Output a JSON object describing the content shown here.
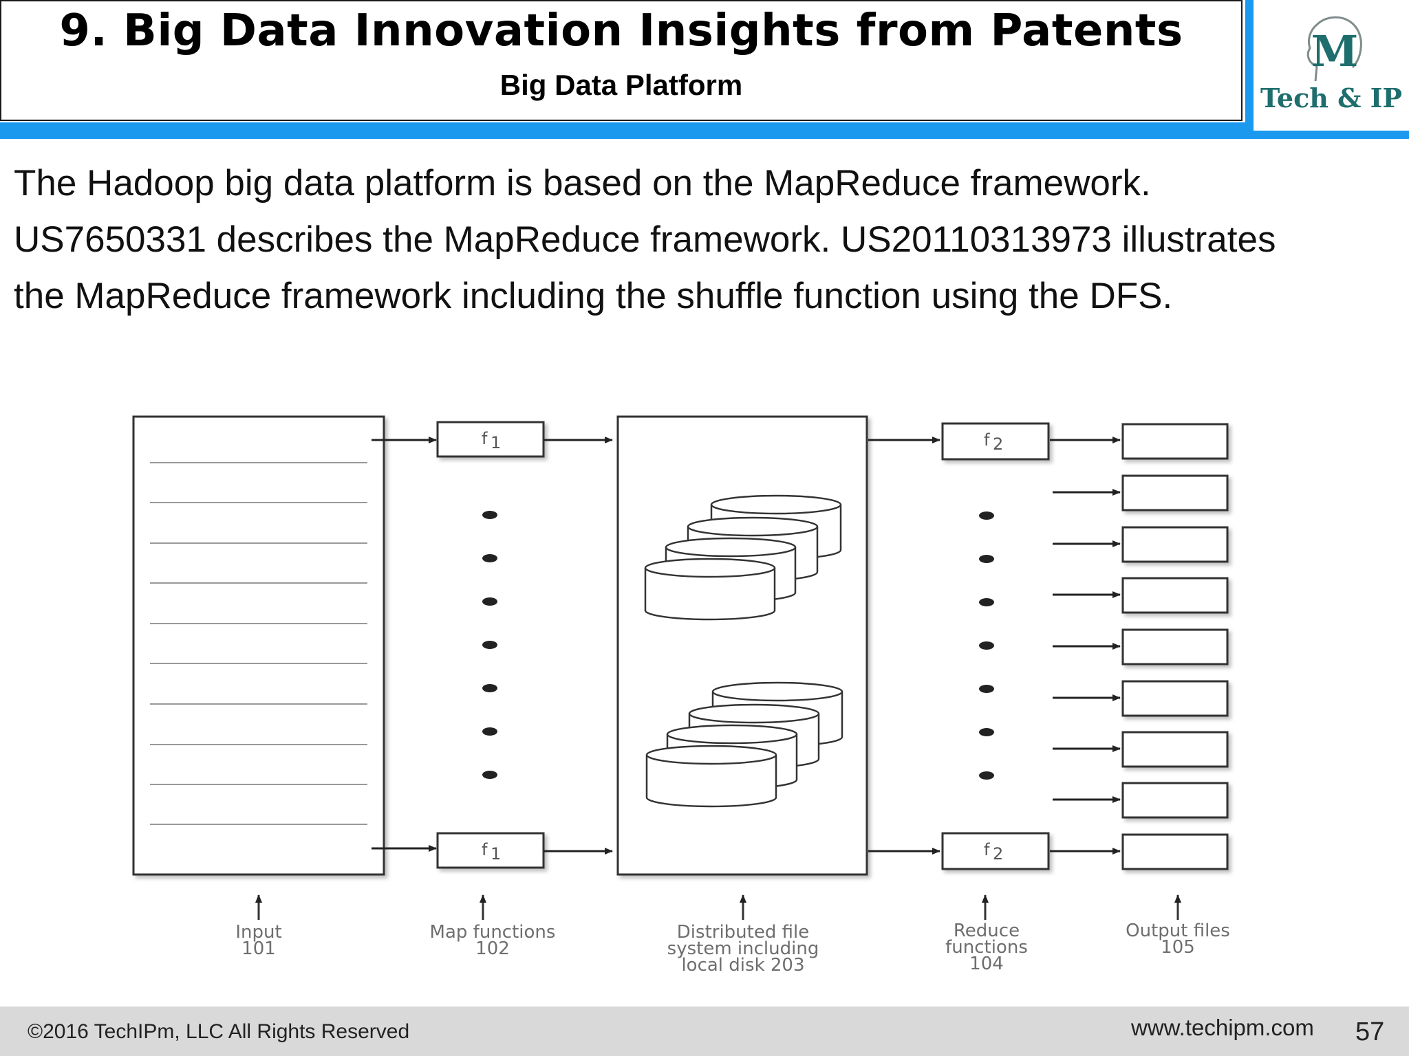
{
  "header": {
    "title": "9. Big Data Innovation Insights from Patents",
    "subtitle": "Big Data Platform"
  },
  "logo": {
    "letter": "M",
    "text": "Tech & IP",
    "icon": "head-profile-icon",
    "color": "#1f6e6e"
  },
  "intro": {
    "lines": [
      "The Hadoop big data platform is based on the MapReduce framework.",
      "US7650331 describes the MapReduce framework. US20110313973 illustrates",
      "the MapReduce framework including the shuffle function using the DFS."
    ]
  },
  "diagram": {
    "map_function_label": "f",
    "map_function_sub": "1",
    "reduce_function_label": "f",
    "reduce_function_sub": "2",
    "input_label": [
      "Input",
      "101"
    ],
    "map_label": [
      "Map functions",
      "102"
    ],
    "dfs_label": [
      "Distributed file",
      "system including",
      "local disk 203"
    ],
    "reduce_label": [
      "Reduce",
      "functions",
      "104"
    ],
    "output_label": [
      "Output files",
      "105"
    ]
  },
  "footer": {
    "copyright": "©2016 TechIPm, LLC All Rights Reserved",
    "website": "www.techipm.com",
    "page": "57"
  },
  "colors": {
    "accent": "#1a99ee",
    "footer_bg": "#d9d9d9"
  }
}
